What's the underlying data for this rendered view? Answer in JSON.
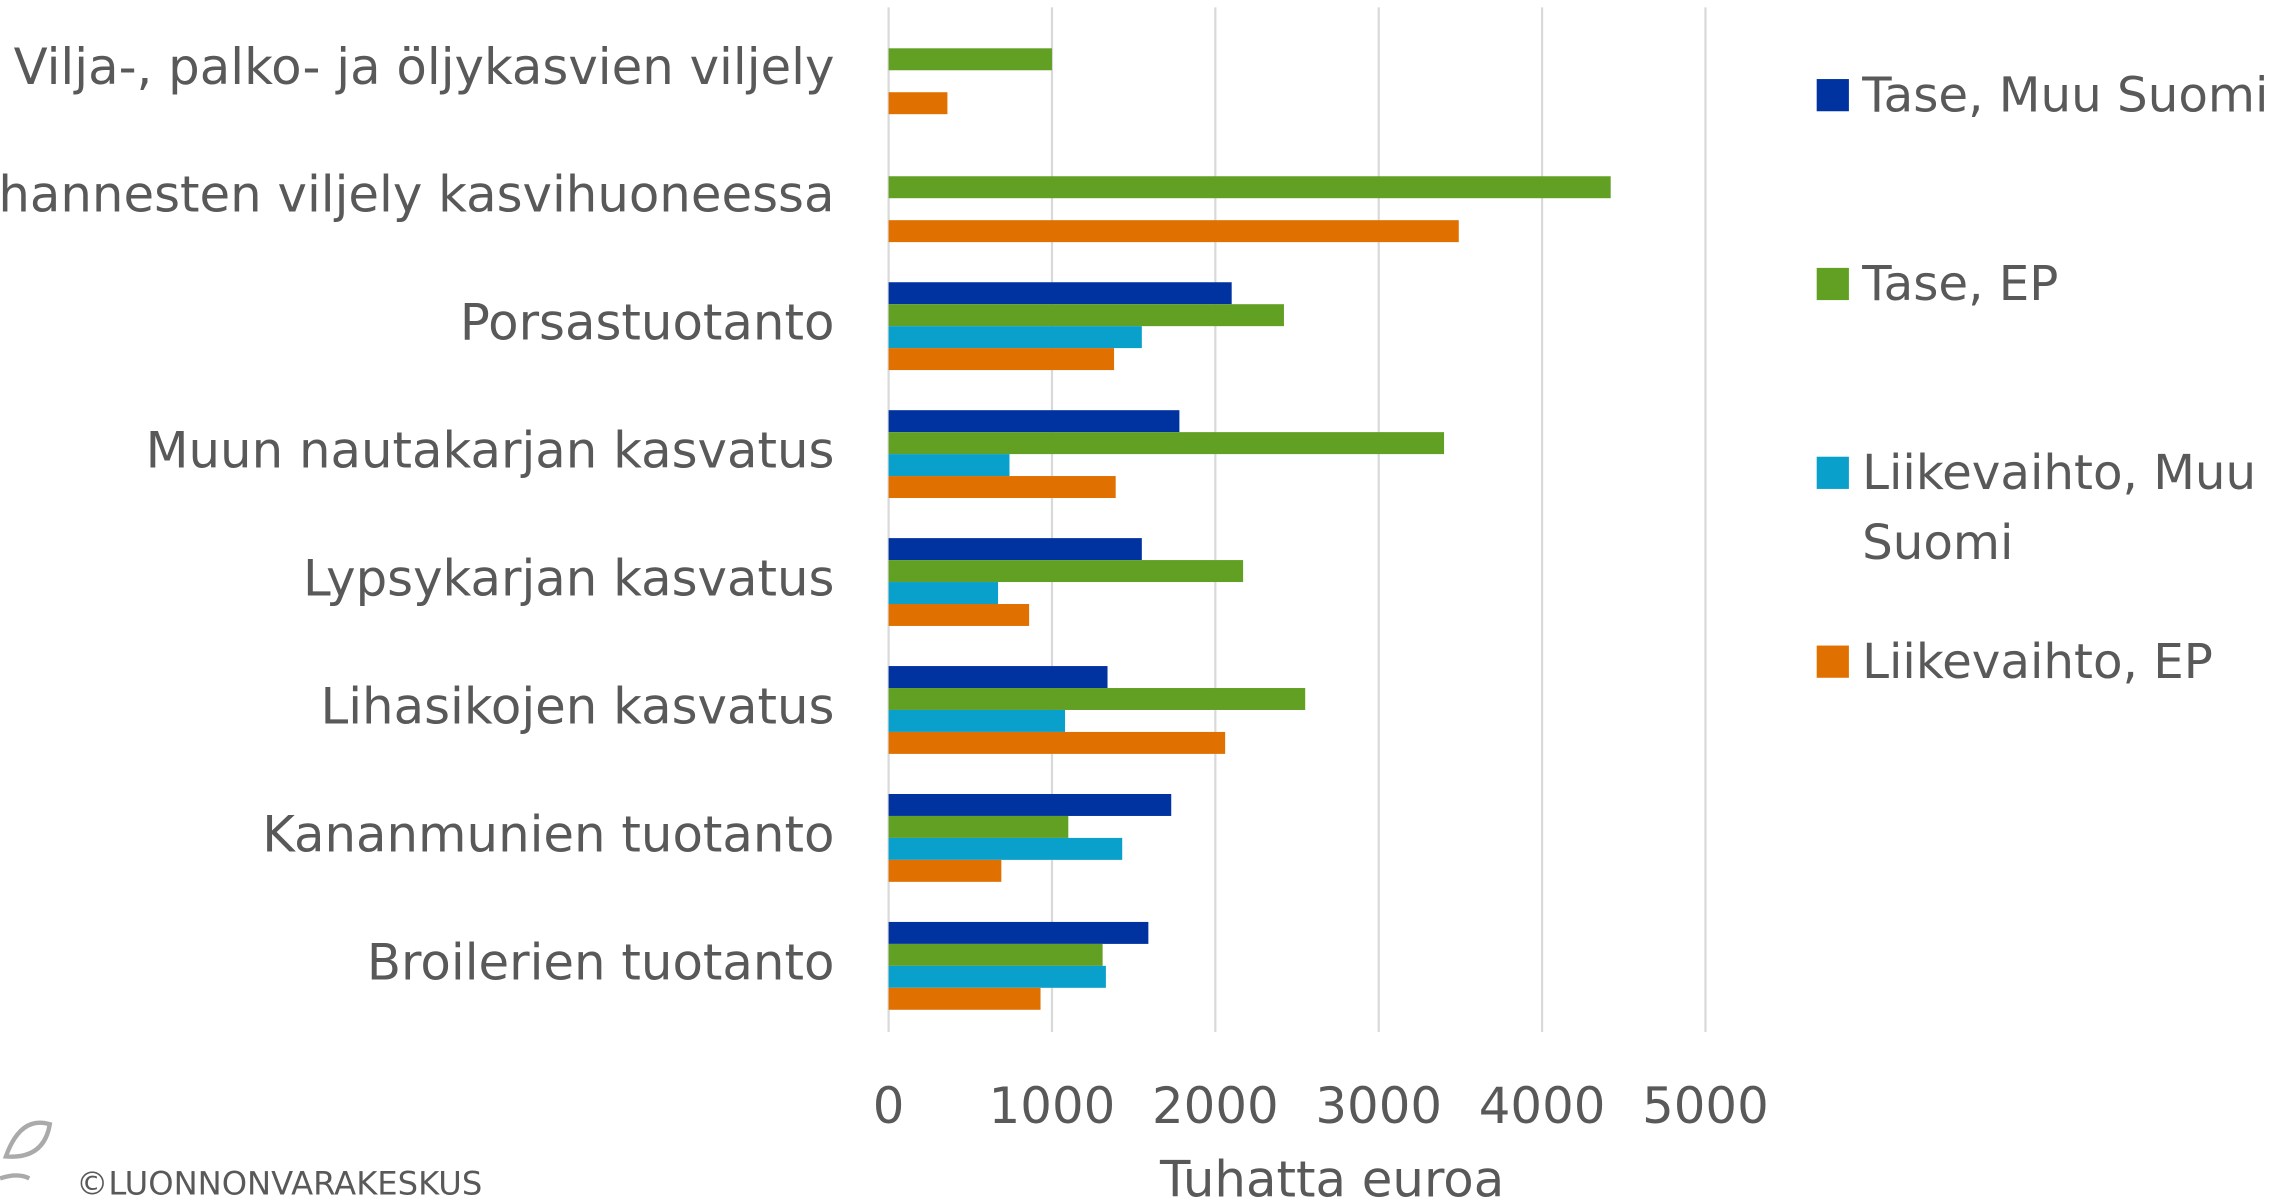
{
  "chart_data": {
    "type": "barh",
    "x_label": "Tuhatta euroa",
    "footer": "©LUONNONVARAKESKUS",
    "categories": [
      "Vilja-, palko- ja öljykasvien viljely",
      "Vihannesten viljely kasvihuoneessa",
      "Porsastuotanto",
      "Muun nautakarjan kasvatus",
      "Lypsykarjan kasvatus",
      "Lihasikojen kasvatus",
      "Kananmunien tuotanto",
      "Broilerien tuotanto"
    ],
    "series": [
      {
        "name": "Tase, Muu Suomi",
        "color": "#0033a0",
        "values": [
          null,
          null,
          2100,
          1780,
          1550,
          1340,
          1730,
          1590
        ]
      },
      {
        "name": "Tase, EP",
        "color": "#62a024",
        "values": [
          1000,
          4420,
          2420,
          3400,
          2170,
          2550,
          1100,
          1310
        ]
      },
      {
        "name": "Liikevaihto, Muu Suomi",
        "color": "#0aa0cc",
        "values": [
          null,
          null,
          1550,
          740,
          670,
          1080,
          1430,
          1330
        ]
      },
      {
        "name": "Liikevaihto, EP",
        "color": "#e07000",
        "values": [
          360,
          3490,
          1380,
          1390,
          860,
          2060,
          690,
          930
        ]
      }
    ],
    "xlim": [
      0,
      5000
    ],
    "xticks": [
      0,
      1000,
      2000,
      3000,
      4000,
      5000
    ],
    "grid": true,
    "legend": "right"
  }
}
